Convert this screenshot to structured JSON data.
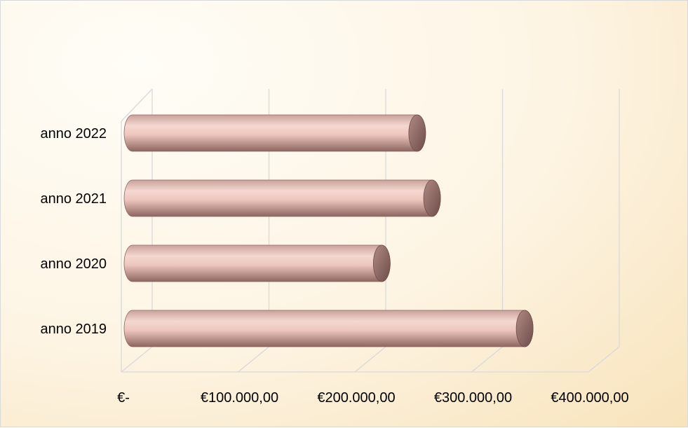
{
  "chart_data": {
    "type": "bar",
    "orientation": "horizontal",
    "style": "3d-cylinder",
    "categories": [
      "anno 2019",
      "anno 2020",
      "anno 2021",
      "anno 2022"
    ],
    "values": [
      343000,
      218000,
      262000,
      249000
    ],
    "series": [
      {
        "values": [
          343000,
          218000,
          262000,
          249000
        ]
      }
    ],
    "xlim": [
      0,
      400000
    ],
    "x_ticks": [
      0,
      100000,
      200000,
      300000,
      400000
    ],
    "x_tick_labels": [
      "€-",
      "€100.000,00",
      "€200.000,00",
      "€300.000,00",
      "€400.000,00"
    ],
    "title": "",
    "xlabel": "",
    "ylabel": "",
    "grid": "vertical",
    "legend": "none",
    "colors": {
      "bar_light": "#f3d0c8",
      "bar_mid": "#c79c95",
      "bar_dark": "#7b5551",
      "gridline": "#d9d9d9",
      "background": "#fdf4e3"
    }
  }
}
